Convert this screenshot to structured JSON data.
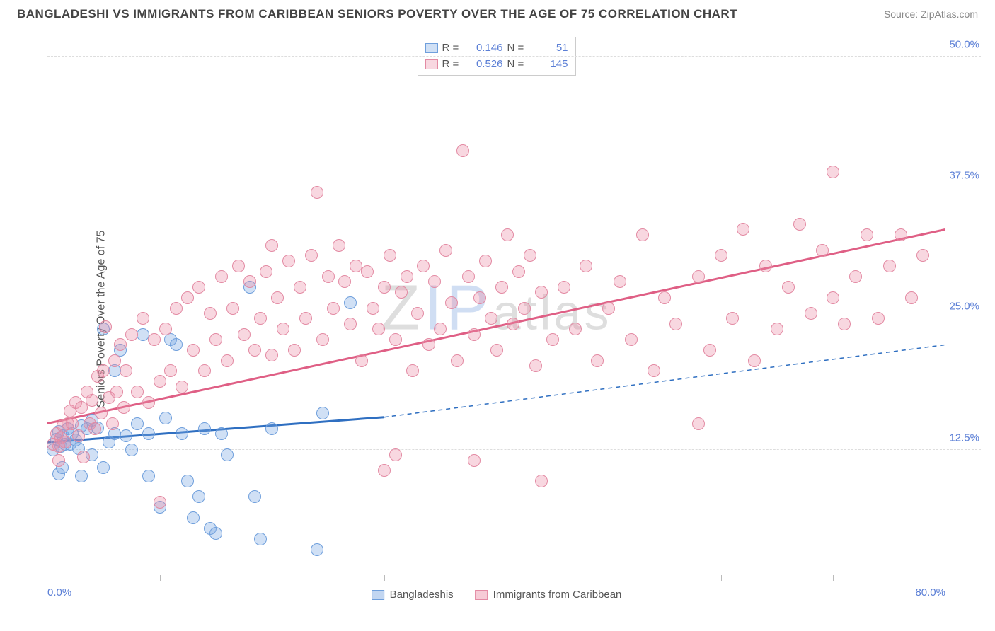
{
  "title": "BANGLADESHI VS IMMIGRANTS FROM CARIBBEAN SENIORS POVERTY OVER THE AGE OF 75 CORRELATION CHART",
  "source": "Source: ZipAtlas.com",
  "y_axis_label": "Seniors Poverty Over the Age of 75",
  "watermark": {
    "part1": "Z",
    "part2": "IP",
    "part3": "atlas"
  },
  "chart": {
    "type": "scatter",
    "x_domain": [
      0,
      80
    ],
    "y_domain": [
      0,
      52
    ],
    "x_ticks": [
      {
        "v": 0,
        "label": "0.0%"
      },
      {
        "v": 80,
        "label": "80.0%"
      }
    ],
    "x_minor_ticks": [
      10,
      20,
      30,
      40,
      50,
      60,
      70
    ],
    "y_ticks": [
      {
        "v": 12.5,
        "label": "12.5%"
      },
      {
        "v": 25.0,
        "label": "25.0%"
      },
      {
        "v": 37.5,
        "label": "37.5%"
      },
      {
        "v": 50.0,
        "label": "50.0%"
      }
    ],
    "grid_color": "#dddddd",
    "background": "#ffffff",
    "series": [
      {
        "name": "Bangladeshis",
        "fill": "rgba(120,165,225,0.35)",
        "stroke": "#6f9fdc",
        "trend_color": "#2f6fc1",
        "marker_radius": 9,
        "R": "0.146",
        "N": "51",
        "trend": {
          "x1": 0,
          "y1": 13.2,
          "x2_solid": 30,
          "y2_solid": 15.6,
          "x2": 80,
          "y2": 22.5
        },
        "points": [
          [
            0.5,
            12.5
          ],
          [
            0.8,
            13.5
          ],
          [
            1.0,
            14.2
          ],
          [
            1.2,
            12.8
          ],
          [
            1.4,
            13.8
          ],
          [
            1.6,
            13.0
          ],
          [
            1.8,
            14.5
          ],
          [
            1.0,
            10.2
          ],
          [
            1.3,
            10.8
          ],
          [
            2.0,
            13.0
          ],
          [
            2.2,
            14.0
          ],
          [
            2.5,
            13.4
          ],
          [
            2.8,
            12.6
          ],
          [
            3.0,
            14.8
          ],
          [
            3.0,
            10.0
          ],
          [
            3.5,
            14.5
          ],
          [
            4.0,
            12.0
          ],
          [
            4.0,
            15.3
          ],
          [
            4.5,
            14.6
          ],
          [
            5.0,
            10.8
          ],
          [
            5.0,
            24.0
          ],
          [
            5.5,
            13.2
          ],
          [
            6.0,
            14.0
          ],
          [
            6.0,
            20.0
          ],
          [
            6.5,
            22.0
          ],
          [
            7.0,
            13.8
          ],
          [
            7.5,
            12.5
          ],
          [
            8.0,
            15.0
          ],
          [
            8.5,
            23.5
          ],
          [
            9.0,
            14.0
          ],
          [
            9.0,
            10.0
          ],
          [
            10.0,
            7.0
          ],
          [
            10.5,
            15.5
          ],
          [
            11.0,
            23.0
          ],
          [
            11.5,
            22.5
          ],
          [
            12.0,
            14.0
          ],
          [
            12.5,
            9.5
          ],
          [
            13.0,
            6.0
          ],
          [
            13.5,
            8.0
          ],
          [
            14.0,
            14.5
          ],
          [
            14.5,
            5.0
          ],
          [
            15.0,
            4.5
          ],
          [
            15.5,
            14.0
          ],
          [
            16.0,
            12.0
          ],
          [
            18.0,
            28.0
          ],
          [
            18.5,
            8.0
          ],
          [
            19.0,
            4.0
          ],
          [
            20.0,
            14.5
          ],
          [
            24.0,
            3.0
          ],
          [
            24.5,
            16.0
          ],
          [
            27.0,
            26.5
          ]
        ]
      },
      {
        "name": "Immigrants from Caribbean",
        "fill": "rgba(235,140,165,0.35)",
        "stroke": "#e38aa3",
        "trend_color": "#df5f85",
        "marker_radius": 9,
        "R": "0.526",
        "N": "145",
        "trend": {
          "x1": 0,
          "y1": 15.0,
          "x2_solid": 80,
          "y2_solid": 33.5,
          "x2": 80,
          "y2": 33.5
        },
        "points": [
          [
            0.5,
            13.0
          ],
          [
            0.8,
            14.0
          ],
          [
            1.0,
            12.8
          ],
          [
            1.2,
            13.6
          ],
          [
            1.4,
            14.8
          ],
          [
            1.6,
            13.2
          ],
          [
            1.8,
            15.0
          ],
          [
            1.0,
            11.5
          ],
          [
            2.0,
            16.2
          ],
          [
            2.2,
            15.0
          ],
          [
            2.5,
            17.0
          ],
          [
            2.8,
            13.8
          ],
          [
            3.0,
            16.5
          ],
          [
            3.2,
            11.8
          ],
          [
            3.5,
            18.0
          ],
          [
            3.8,
            15.0
          ],
          [
            4.0,
            17.2
          ],
          [
            4.2,
            14.5
          ],
          [
            4.5,
            19.5
          ],
          [
            4.8,
            16.0
          ],
          [
            5.0,
            20.0
          ],
          [
            5.2,
            24.2
          ],
          [
            5.5,
            17.5
          ],
          [
            5.8,
            15.0
          ],
          [
            6.0,
            21.0
          ],
          [
            6.2,
            18.0
          ],
          [
            6.5,
            22.5
          ],
          [
            6.8,
            16.5
          ],
          [
            7.0,
            20.0
          ],
          [
            7.5,
            23.5
          ],
          [
            8.0,
            18.0
          ],
          [
            8.5,
            25.0
          ],
          [
            9.0,
            17.0
          ],
          [
            9.5,
            23.0
          ],
          [
            10.0,
            19.0
          ],
          [
            10.0,
            7.5
          ],
          [
            10.5,
            24.0
          ],
          [
            11.0,
            20.0
          ],
          [
            11.5,
            26.0
          ],
          [
            12.0,
            18.5
          ],
          [
            12.5,
            27.0
          ],
          [
            13.0,
            22.0
          ],
          [
            13.5,
            28.0
          ],
          [
            14.0,
            20.0
          ],
          [
            14.5,
            25.5
          ],
          [
            15.0,
            23.0
          ],
          [
            15.5,
            29.0
          ],
          [
            16.0,
            21.0
          ],
          [
            16.5,
            26.0
          ],
          [
            17.0,
            30.0
          ],
          [
            17.5,
            23.5
          ],
          [
            18.0,
            28.5
          ],
          [
            18.5,
            22.0
          ],
          [
            19.0,
            25.0
          ],
          [
            19.5,
            29.5
          ],
          [
            20.0,
            21.5
          ],
          [
            20.0,
            32.0
          ],
          [
            20.5,
            27.0
          ],
          [
            21.0,
            24.0
          ],
          [
            21.5,
            30.5
          ],
          [
            22.0,
            22.0
          ],
          [
            22.5,
            28.0
          ],
          [
            23.0,
            25.0
          ],
          [
            23.5,
            31.0
          ],
          [
            24.0,
            37.0
          ],
          [
            24.5,
            23.0
          ],
          [
            25.0,
            29.0
          ],
          [
            25.5,
            26.0
          ],
          [
            26.0,
            32.0
          ],
          [
            26.5,
            28.5
          ],
          [
            27.0,
            24.5
          ],
          [
            27.5,
            30.0
          ],
          [
            28.0,
            21.0
          ],
          [
            28.5,
            29.5
          ],
          [
            29.0,
            26.0
          ],
          [
            29.5,
            24.0
          ],
          [
            30.0,
            28.0
          ],
          [
            30.5,
            31.0
          ],
          [
            31.0,
            23.0
          ],
          [
            31.5,
            27.5
          ],
          [
            32.0,
            29.0
          ],
          [
            32.5,
            20.0
          ],
          [
            33.0,
            25.5
          ],
          [
            33.5,
            30.0
          ],
          [
            34.0,
            22.5
          ],
          [
            34.5,
            28.5
          ],
          [
            35.0,
            24.0
          ],
          [
            35.5,
            31.5
          ],
          [
            36.0,
            26.5
          ],
          [
            36.5,
            21.0
          ],
          [
            37.0,
            41.0
          ],
          [
            37.5,
            29.0
          ],
          [
            38.0,
            23.5
          ],
          [
            38.5,
            27.0
          ],
          [
            39.0,
            30.5
          ],
          [
            39.5,
            25.0
          ],
          [
            40.0,
            22.0
          ],
          [
            40.5,
            28.0
          ],
          [
            41.0,
            33.0
          ],
          [
            41.5,
            24.5
          ],
          [
            42.0,
            29.5
          ],
          [
            42.5,
            26.0
          ],
          [
            43.0,
            31.0
          ],
          [
            43.5,
            20.5
          ],
          [
            44.0,
            27.5
          ],
          [
            45.0,
            23.0
          ],
          [
            30.0,
            10.5
          ],
          [
            31.0,
            12.0
          ],
          [
            38.0,
            11.5
          ],
          [
            44.0,
            9.5
          ],
          [
            46.0,
            28.0
          ],
          [
            47.0,
            24.0
          ],
          [
            48.0,
            30.0
          ],
          [
            49.0,
            21.0
          ],
          [
            50.0,
            26.0
          ],
          [
            51.0,
            28.5
          ],
          [
            52.0,
            23.0
          ],
          [
            53.0,
            33.0
          ],
          [
            54.0,
            20.0
          ],
          [
            55.0,
            27.0
          ],
          [
            56.0,
            24.5
          ],
          [
            58.0,
            29.0
          ],
          [
            58.0,
            15.0
          ],
          [
            59.0,
            22.0
          ],
          [
            60.0,
            31.0
          ],
          [
            61.0,
            25.0
          ],
          [
            62.0,
            33.5
          ],
          [
            63.0,
            21.0
          ],
          [
            64.0,
            30.0
          ],
          [
            65.0,
            24.0
          ],
          [
            66.0,
            28.0
          ],
          [
            67.0,
            34.0
          ],
          [
            68.0,
            25.5
          ],
          [
            69.0,
            31.5
          ],
          [
            70.0,
            27.0
          ],
          [
            70.0,
            39.0
          ],
          [
            71.0,
            24.5
          ],
          [
            72.0,
            29.0
          ],
          [
            73.0,
            33.0
          ],
          [
            74.0,
            25.0
          ],
          [
            75.0,
            30.0
          ],
          [
            76.0,
            33.0
          ],
          [
            77.0,
            27.0
          ],
          [
            78.0,
            31.0
          ]
        ]
      }
    ],
    "legend_bottom": [
      {
        "label": "Bangladeshis",
        "fill": "rgba(120,165,225,0.45)",
        "stroke": "#6f9fdc"
      },
      {
        "label": "Immigrants from Caribbean",
        "fill": "rgba(235,140,165,0.45)",
        "stroke": "#e38aa3"
      }
    ]
  }
}
